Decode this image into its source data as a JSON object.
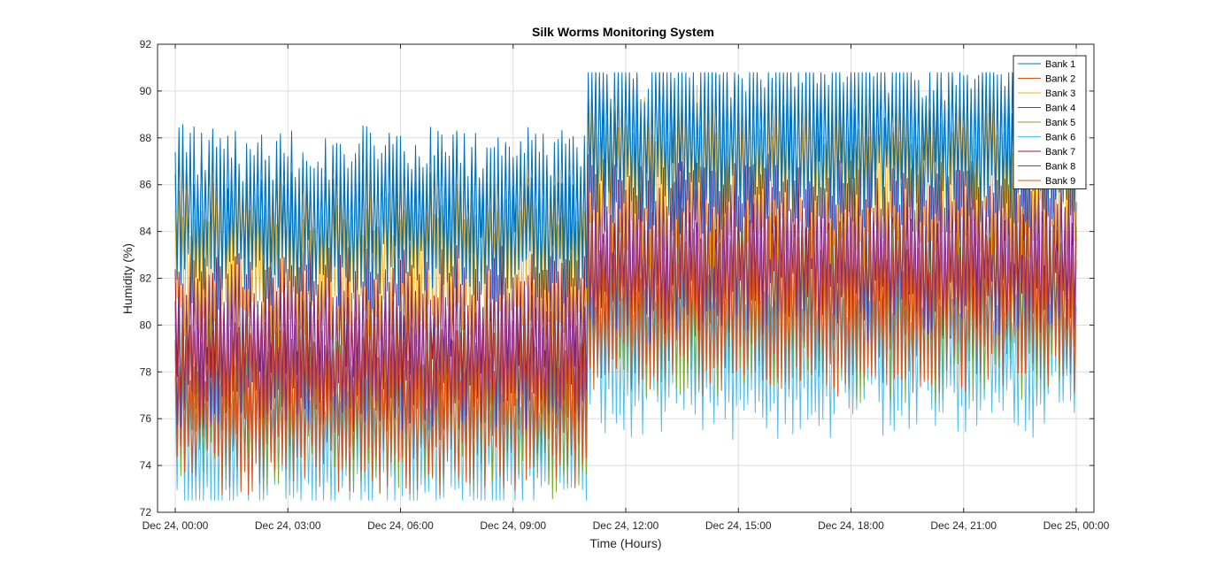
{
  "chart_data": {
    "type": "line",
    "title": "Silk Worms Monitoring System",
    "xlabel": "Time (Hours)",
    "ylabel": "Humidity (%)",
    "xlim_hours": [
      0,
      24
    ],
    "ylim": [
      72,
      92
    ],
    "x_ticks": [
      {
        "hour": 0,
        "label": "Dec 24, 00:00"
      },
      {
        "hour": 3,
        "label": "Dec 24, 03:00"
      },
      {
        "hour": 6,
        "label": "Dec 24, 06:00"
      },
      {
        "hour": 9,
        "label": "Dec 24, 09:00"
      },
      {
        "hour": 12,
        "label": "Dec 24, 12:00"
      },
      {
        "hour": 15,
        "label": "Dec 24, 15:00"
      },
      {
        "hour": 18,
        "label": "Dec 24, 18:00"
      },
      {
        "hour": 21,
        "label": "Dec 24, 21:00"
      },
      {
        "hour": 24,
        "label": "Dec 25, 00:00"
      }
    ],
    "y_ticks": [
      72,
      74,
      76,
      78,
      80,
      82,
      84,
      86,
      88,
      90,
      92
    ],
    "grid": true,
    "legend_position": "top-right",
    "segments": [
      {
        "start_hour": 0,
        "end_hour": 10.95,
        "centers": [
          84.8,
          77.6,
          82.8,
          79.2,
          76.6,
          75.2,
          79.6,
          84.6,
          76.6
        ],
        "amplitude": 3.6
      },
      {
        "start_hour": 10.95,
        "end_hour": 24,
        "centers": [
          88.1,
          81.2,
          86.4,
          83.4,
          80.9,
          79.2,
          82.6,
          87.9,
          81.1
        ],
        "amplitude": 3.8
      }
    ],
    "series": [
      {
        "name": "Bank 1",
        "color": "#0072BD"
      },
      {
        "name": "Bank 2",
        "color": "#D95319"
      },
      {
        "name": "Bank 3",
        "color": "#EDB120"
      },
      {
        "name": "Bank 4",
        "color": "#7E2F8E"
      },
      {
        "name": "Bank 5",
        "color": "#77AC30"
      },
      {
        "name": "Bank 6",
        "color": "#4DBEEE"
      },
      {
        "name": "Bank 7",
        "color": "#A2142F"
      },
      {
        "name": "Bank 8",
        "color": "#0072BD"
      },
      {
        "name": "Bank 9",
        "color": "#D95319"
      }
    ]
  }
}
